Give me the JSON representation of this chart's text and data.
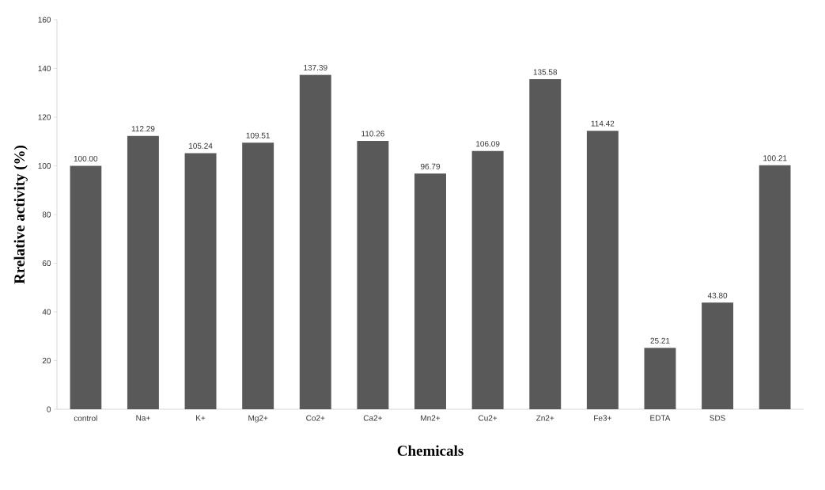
{
  "chart_data": {
    "type": "bar",
    "xlabel": "Chemicals",
    "ylabel": "Rrelative activity (%)",
    "categories": [
      "control",
      "Na+",
      "K+",
      "Mg2+",
      "Co2+",
      "Ca2+",
      "Mn2+",
      "Cu2+",
      "Zn2+",
      "Fe3+",
      "EDTA",
      "SDS",
      null
    ],
    "values": [
      100.0,
      112.29,
      105.24,
      109.51,
      137.39,
      110.26,
      96.79,
      106.09,
      135.58,
      114.42,
      25.21,
      43.8,
      100.21
    ],
    "value_labels": [
      "100.00",
      "112.29",
      "105.24",
      "109.51",
      "137.39",
      "110.26",
      "96.79",
      "106.09",
      "135.58",
      "114.42",
      "25.21",
      "43.80",
      "100.21"
    ],
    "color": "#595959",
    "ylim": [
      0,
      160
    ],
    "yticks": [
      0,
      20,
      40,
      60,
      80,
      100,
      120,
      140,
      160
    ],
    "grid": false
  }
}
